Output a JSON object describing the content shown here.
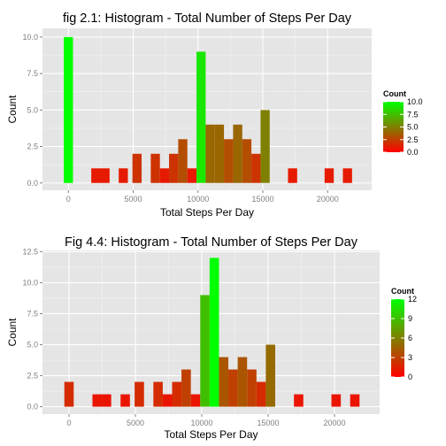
{
  "chart_data": [
    {
      "type": "bar",
      "title": "fig 2.1: Histogram - Total Number of Steps Per Day",
      "xlabel": "Total Steps Per Day",
      "ylabel": "Count",
      "xlim": [
        -2000,
        23400
      ],
      "ylim": [
        -0.5,
        10.6
      ],
      "x_ticks": [
        0,
        5000,
        10000,
        15000,
        20000
      ],
      "x_tick_labels": [
        "0",
        "5000",
        "10000",
        "15000",
        "20000"
      ],
      "y_ticks": [
        0,
        2.5,
        5,
        7.5,
        10
      ],
      "y_tick_labels": [
        "0.0",
        "2.5",
        "5.0",
        "7.5",
        "10.0"
      ],
      "bin_width": 706,
      "bins": [
        {
          "x": 0,
          "count": 10
        },
        {
          "x": 2118,
          "count": 1
        },
        {
          "x": 2824,
          "count": 1
        },
        {
          "x": 4236,
          "count": 1
        },
        {
          "x": 5296,
          "count": 2
        },
        {
          "x": 6708,
          "count": 2
        },
        {
          "x": 7414,
          "count": 1
        },
        {
          "x": 8120,
          "count": 2
        },
        {
          "x": 8826,
          "count": 3
        },
        {
          "x": 9532,
          "count": 1
        },
        {
          "x": 10238,
          "count": 9
        },
        {
          "x": 10944,
          "count": 4
        },
        {
          "x": 11650,
          "count": 4
        },
        {
          "x": 12356,
          "count": 3
        },
        {
          "x": 13062,
          "count": 4
        },
        {
          "x": 13768,
          "count": 3
        },
        {
          "x": 14474,
          "count": 2
        },
        {
          "x": 15180,
          "count": 5
        },
        {
          "x": 17298,
          "count": 1
        },
        {
          "x": 20122,
          "count": 1
        },
        {
          "x": 21534,
          "count": 1
        }
      ],
      "legend": {
        "title": "Count",
        "placement": "right",
        "min": 0,
        "max": 10,
        "ticks": [
          0,
          2.5,
          5,
          7.5,
          10
        ],
        "tick_labels": [
          "0.0",
          "2.5",
          "5.0",
          "7.5",
          "10.0"
        ],
        "low_color": "#ff0000",
        "high_color": "#00ff00"
      },
      "grid": true,
      "panel_color": "#e5e5e5"
    },
    {
      "type": "bar",
      "title": "Fig 4.4: Histogram - Total Number of Steps Per Day",
      "xlabel": "Total Steps Per Day",
      "ylabel": "Count",
      "xlim": [
        -2000,
        23400
      ],
      "ylim": [
        -0.6,
        12.6
      ],
      "x_ticks": [
        0,
        5000,
        10000,
        15000,
        20000
      ],
      "x_tick_labels": [
        "0",
        "5000",
        "10000",
        "15000",
        "20000"
      ],
      "y_ticks": [
        0,
        2.5,
        5,
        7.5,
        10,
        12.5
      ],
      "y_tick_labels": [
        "0.0",
        "2.5",
        "5.0",
        "7.5",
        "10.0",
        "12.5"
      ],
      "bin_width": 706,
      "bins": [
        {
          "x": 0,
          "count": 2
        },
        {
          "x": 2118,
          "count": 1
        },
        {
          "x": 2824,
          "count": 1
        },
        {
          "x": 4236,
          "count": 1
        },
        {
          "x": 5296,
          "count": 2
        },
        {
          "x": 6708,
          "count": 2
        },
        {
          "x": 7414,
          "count": 1
        },
        {
          "x": 8120,
          "count": 2
        },
        {
          "x": 8826,
          "count": 3
        },
        {
          "x": 9532,
          "count": 1
        },
        {
          "x": 10238,
          "count": 9
        },
        {
          "x": 10944,
          "count": 12
        },
        {
          "x": 11650,
          "count": 4
        },
        {
          "x": 12356,
          "count": 3
        },
        {
          "x": 13062,
          "count": 4
        },
        {
          "x": 13768,
          "count": 3
        },
        {
          "x": 14474,
          "count": 2
        },
        {
          "x": 15180,
          "count": 5
        },
        {
          "x": 17298,
          "count": 1
        },
        {
          "x": 20122,
          "count": 1
        },
        {
          "x": 21534,
          "count": 1
        }
      ],
      "legend": {
        "title": "Count",
        "placement": "right",
        "min": 0,
        "max": 12,
        "ticks": [
          0,
          3,
          6,
          9,
          12
        ],
        "tick_labels": [
          "0",
          "3",
          "6",
          "9",
          "12"
        ],
        "low_color": "#ff0000",
        "high_color": "#00ff00"
      },
      "grid": true,
      "panel_color": "#e5e5e5"
    }
  ]
}
